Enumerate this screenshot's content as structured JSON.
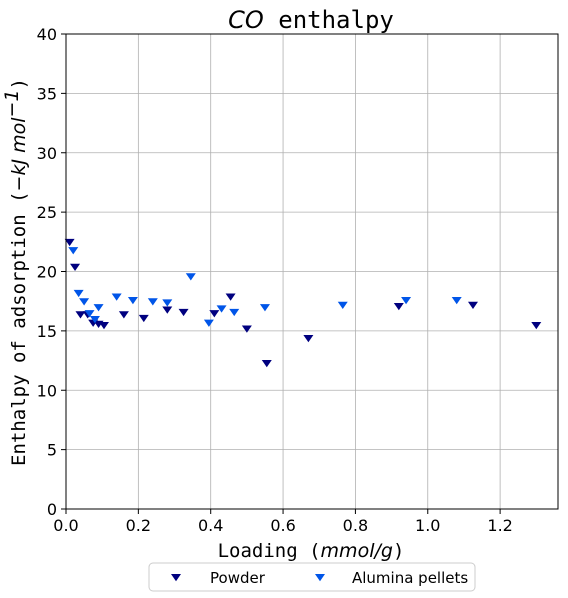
{
  "chart_data": {
    "type": "scatter",
    "title": "CO enthalpy",
    "title_parts": {
      "italic": "CO",
      "plain": " enthalpy"
    },
    "xlabel": "Loading (mmol/g)",
    "xlabel_parts": {
      "pre": "Loading (",
      "ital": "mmol/g",
      "post": ")"
    },
    "ylabel": "Enthalpy of adsorption (−kJ mol⁻¹)",
    "ylabel_parts": {
      "pre": "Enthalpy of adsorption (",
      "ital": "−kJ mol",
      "sup": "−1",
      "post": ")"
    },
    "xlim": [
      0,
      1.36
    ],
    "ylim": [
      0,
      40
    ],
    "xticks": [
      0.0,
      0.2,
      0.4,
      0.6,
      0.8,
      1.0,
      1.2
    ],
    "xtick_labels": [
      "0.0",
      "0.2",
      "0.4",
      "0.6",
      "0.8",
      "1.0",
      "1.2"
    ],
    "yticks": [
      0,
      5,
      10,
      15,
      20,
      25,
      30,
      35,
      40
    ],
    "ytick_labels": [
      "0",
      "5",
      "10",
      "15",
      "20",
      "25",
      "30",
      "35",
      "40"
    ],
    "grid": true,
    "legend_position": "bottom-center",
    "marker": "triangle-down",
    "series": [
      {
        "name": "Powder",
        "color": "#00007f",
        "points": [
          {
            "x": 0.01,
            "y": 22.5
          },
          {
            "x": 0.025,
            "y": 20.4
          },
          {
            "x": 0.04,
            "y": 16.4
          },
          {
            "x": 0.06,
            "y": 16.4
          },
          {
            "x": 0.075,
            "y": 15.7
          },
          {
            "x": 0.09,
            "y": 15.6
          },
          {
            "x": 0.105,
            "y": 15.5
          },
          {
            "x": 0.16,
            "y": 16.4
          },
          {
            "x": 0.215,
            "y": 16.1
          },
          {
            "x": 0.28,
            "y": 16.8
          },
          {
            "x": 0.325,
            "y": 16.6
          },
          {
            "x": 0.41,
            "y": 16.5
          },
          {
            "x": 0.455,
            "y": 17.9
          },
          {
            "x": 0.5,
            "y": 15.2
          },
          {
            "x": 0.555,
            "y": 12.3
          },
          {
            "x": 0.67,
            "y": 14.4
          },
          {
            "x": 0.92,
            "y": 17.1
          },
          {
            "x": 1.125,
            "y": 17.2
          },
          {
            "x": 1.3,
            "y": 15.5
          }
        ]
      },
      {
        "name": "Alumina pellets",
        "color": "#0055e8",
        "points": [
          {
            "x": 0.02,
            "y": 21.8
          },
          {
            "x": 0.035,
            "y": 18.2
          },
          {
            "x": 0.05,
            "y": 17.5
          },
          {
            "x": 0.065,
            "y": 16.5
          },
          {
            "x": 0.08,
            "y": 16.0
          },
          {
            "x": 0.09,
            "y": 17.0
          },
          {
            "x": 0.14,
            "y": 17.9
          },
          {
            "x": 0.185,
            "y": 17.6
          },
          {
            "x": 0.24,
            "y": 17.5
          },
          {
            "x": 0.28,
            "y": 17.4
          },
          {
            "x": 0.345,
            "y": 19.6
          },
          {
            "x": 0.395,
            "y": 15.7
          },
          {
            "x": 0.43,
            "y": 16.9
          },
          {
            "x": 0.465,
            "y": 16.6
          },
          {
            "x": 0.55,
            "y": 17.0
          },
          {
            "x": 0.765,
            "y": 17.2
          },
          {
            "x": 0.94,
            "y": 17.6
          },
          {
            "x": 1.08,
            "y": 17.6
          }
        ]
      }
    ]
  }
}
